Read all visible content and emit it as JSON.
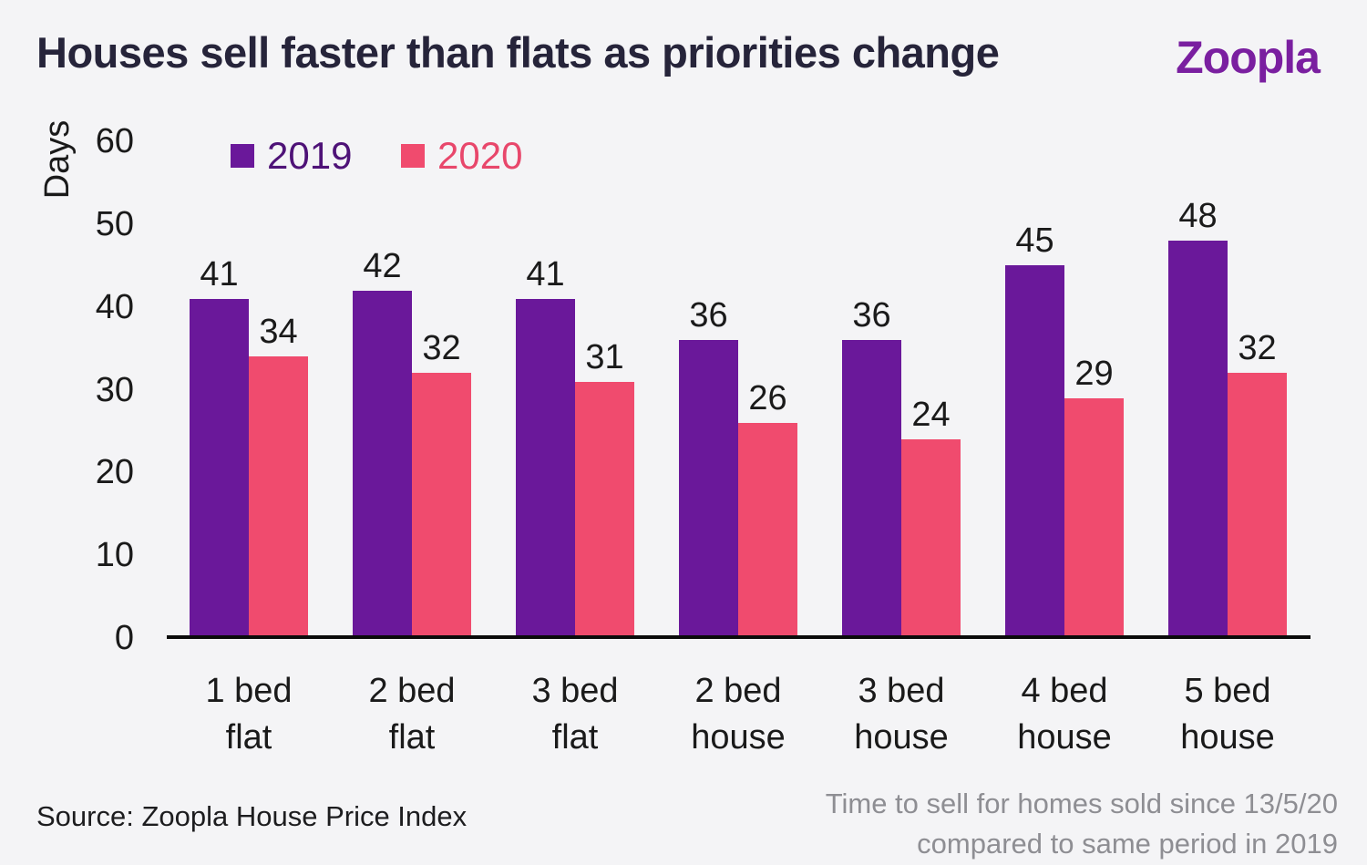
{
  "page": {
    "title": "Houses sell faster than flats as priorities change",
    "brand": "Zoopla",
    "source": "Source: Zoopla House Price Index",
    "footnote_line1": "Time to sell for homes sold since 13/5/20",
    "footnote_line2": "compared to same period in 2019"
  },
  "colors": {
    "background": "#f4f4f6",
    "title_text": "#26243a",
    "brand_purple": "#7a1fa0",
    "bar_2019_purple": "#6a189a",
    "bar_2020_pink": "#f04b6e",
    "legend_2019_text": "#4e1277",
    "legend_2020_text": "#e8476b",
    "axis_text": "#1a1a1a",
    "axis_line": "#0b0b0b",
    "footnote_gray": "#8e8e93"
  },
  "chart_data": {
    "type": "bar",
    "title": "Houses sell faster than flats as priorities change",
    "xlabel": "",
    "ylabel": "Days",
    "ylim": [
      0,
      60
    ],
    "yticks": [
      0,
      10,
      20,
      30,
      40,
      50,
      60
    ],
    "grid": false,
    "legend_position": "top-left",
    "categories": [
      "1 bed flat",
      "2 bed flat",
      "3 bed flat",
      "2 bed house",
      "3 bed house",
      "4 bed house",
      "5 bed house"
    ],
    "series": [
      {
        "name": "2019",
        "color": "#6a189a",
        "values": [
          41,
          42,
          41,
          36,
          36,
          45,
          48
        ]
      },
      {
        "name": "2020",
        "color": "#f04b6e",
        "values": [
          34,
          32,
          31,
          26,
          24,
          29,
          32
        ]
      }
    ],
    "value_labels_shown": true
  }
}
